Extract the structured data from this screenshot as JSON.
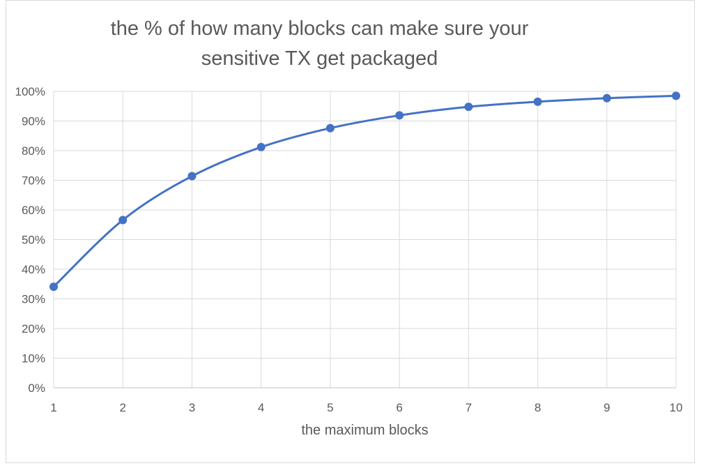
{
  "chart_data": {
    "type": "line",
    "title_line1": "the % of how many blocks can make sure your",
    "title_line2": "sensitive TX get packaged",
    "xlabel": "the maximum blocks",
    "ylabel": "",
    "x": [
      1,
      2,
      3,
      4,
      5,
      6,
      7,
      8,
      9,
      10
    ],
    "series": [
      {
        "values": [
          34.1,
          56.6,
          71.4,
          81.2,
          87.6,
          91.9,
          94.8,
          96.5,
          97.7,
          98.5
        ]
      }
    ],
    "xlim": [
      1,
      10
    ],
    "ylim": [
      0,
      100
    ],
    "y_ticks": [
      "0%",
      "10%",
      "20%",
      "30%",
      "40%",
      "50%",
      "60%",
      "70%",
      "80%",
      "90%",
      "100%"
    ],
    "x_ticks": [
      "1",
      "2",
      "3",
      "4",
      "5",
      "6",
      "7",
      "8",
      "9",
      "10"
    ],
    "grid": true,
    "legend": "none",
    "colors": {
      "line": "#4472c4",
      "grid": "#d9d9d9",
      "text": "#595959"
    }
  }
}
